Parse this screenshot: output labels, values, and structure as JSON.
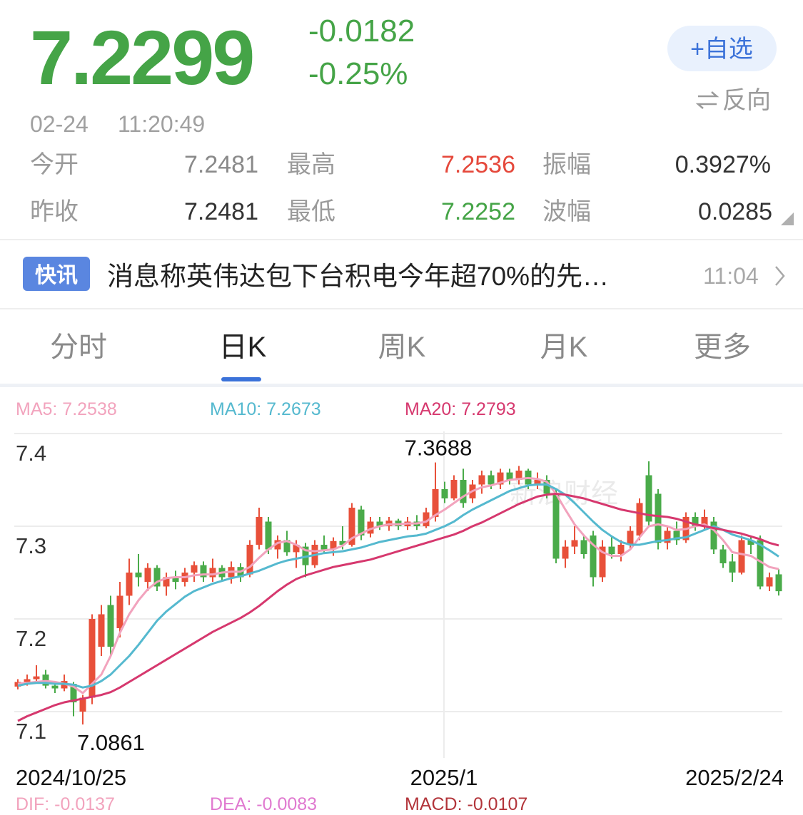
{
  "quote": {
    "price": 7.2299,
    "change": -0.0182,
    "change_pct": "-0.25%",
    "watch_button": "+自选",
    "reverse": "反向",
    "date": "02-24",
    "time": "11:20:49",
    "stats": [
      [
        {
          "label": "今开",
          "value": "7.2481"
        },
        {
          "label": "最高",
          "value": "7.2536"
        },
        {
          "label": "振幅",
          "value": "0.3927%"
        }
      ],
      [
        {
          "label": "昨收",
          "value": "7.2481"
        },
        {
          "label": "最低",
          "value": "7.2252"
        },
        {
          "label": "波幅",
          "value": "0.0285"
        }
      ]
    ]
  },
  "news": {
    "badge": "快讯",
    "headline": "消息称英伟达包下台积电今年超70%的先…",
    "time": "11:04"
  },
  "tabs": [
    "分时",
    "日K",
    "周K",
    "月K",
    "更多"
  ],
  "chart_data": {
    "type": "candlestick",
    "watermark": "新浪财经",
    "up_color": "#e8503a",
    "down_color": "#4aab4a",
    "ylim": [
      7.05,
      7.41
    ],
    "yticks": [
      7.4,
      7.3,
      7.2,
      7.1
    ],
    "grid": true,
    "categories": [
      "2024/10/25",
      null,
      null,
      null,
      null,
      null,
      null,
      null,
      null,
      null,
      null,
      null,
      null,
      null,
      null,
      null,
      null,
      null,
      null,
      null,
      null,
      null,
      null,
      null,
      null,
      null,
      null,
      null,
      null,
      null,
      null,
      null,
      null,
      null,
      null,
      null,
      null,
      null,
      null,
      null,
      null,
      null,
      null,
      null,
      null,
      null,
      "2025/1",
      null,
      null,
      null,
      null,
      null,
      null,
      null,
      null,
      null,
      null,
      null,
      null,
      null,
      null,
      null,
      null,
      null,
      null,
      null,
      null,
      null,
      null,
      null,
      null,
      null,
      null,
      null,
      null,
      null,
      null,
      null,
      null,
      null,
      null,
      null,
      "2025/2/24"
    ],
    "ohlc": [
      [
        7.127,
        7.135,
        7.124,
        7.132
      ],
      [
        7.132,
        7.14,
        7.128,
        7.135
      ],
      [
        7.135,
        7.15,
        7.13,
        7.138
      ],
      [
        7.14,
        7.145,
        7.125,
        7.128
      ],
      [
        7.128,
        7.132,
        7.12,
        7.125
      ],
      [
        7.125,
        7.14,
        7.122,
        7.133
      ],
      [
        7.13,
        7.132,
        7.095,
        7.11
      ],
      [
        7.1,
        7.118,
        7.0861,
        7.115
      ],
      [
        7.115,
        7.205,
        7.108,
        7.2
      ],
      [
        7.17,
        7.215,
        7.16,
        7.205
      ],
      [
        7.215,
        7.225,
        7.16,
        7.17
      ],
      [
        7.19,
        7.24,
        7.18,
        7.225
      ],
      [
        7.225,
        7.265,
        7.215,
        7.25
      ],
      [
        7.25,
        7.27,
        7.235,
        7.245
      ],
      [
        7.24,
        7.26,
        7.23,
        7.255
      ],
      [
        7.255,
        7.258,
        7.23,
        7.235
      ],
      [
        7.235,
        7.25,
        7.225,
        7.245
      ],
      [
        7.245,
        7.252,
        7.232,
        7.24
      ],
      [
        7.24,
        7.255,
        7.235,
        7.25
      ],
      [
        7.25,
        7.262,
        7.24,
        7.258
      ],
      [
        7.258,
        7.262,
        7.24,
        7.245
      ],
      [
        7.245,
        7.265,
        7.24,
        7.255
      ],
      [
        7.255,
        7.258,
        7.24,
        7.245
      ],
      [
        7.245,
        7.262,
        7.238,
        7.256
      ],
      [
        7.256,
        7.26,
        7.24,
        7.245
      ],
      [
        7.248,
        7.285,
        7.245,
        7.28
      ],
      [
        7.28,
        7.32,
        7.275,
        7.31
      ],
      [
        7.305,
        7.31,
        7.27,
        7.275
      ],
      [
        7.275,
        7.29,
        7.265,
        7.285
      ],
      [
        7.285,
        7.295,
        7.268,
        7.272
      ],
      [
        7.272,
        7.285,
        7.255,
        7.28
      ],
      [
        7.278,
        7.282,
        7.245,
        7.258
      ],
      [
        7.258,
        7.285,
        7.255,
        7.28
      ],
      [
        7.28,
        7.29,
        7.27,
        7.275
      ],
      [
        7.275,
        7.288,
        7.268,
        7.284
      ],
      [
        7.284,
        7.3,
        7.275,
        7.28
      ],
      [
        7.28,
        7.325,
        7.278,
        7.32
      ],
      [
        7.318,
        7.322,
        7.285,
        7.29
      ],
      [
        7.292,
        7.31,
        7.288,
        7.305
      ],
      [
        7.305,
        7.31,
        7.296,
        7.3
      ],
      [
        7.3,
        7.31,
        7.295,
        7.306
      ],
      [
        7.306,
        7.308,
        7.296,
        7.3
      ],
      [
        7.3,
        7.31,
        7.296,
        7.305
      ],
      [
        7.305,
        7.312,
        7.296,
        7.3
      ],
      [
        7.3,
        7.32,
        7.298,
        7.315
      ],
      [
        7.31,
        7.3688,
        7.305,
        7.34
      ],
      [
        7.34,
        7.348,
        7.325,
        7.33
      ],
      [
        7.33,
        7.355,
        7.328,
        7.35
      ],
      [
        7.35,
        7.362,
        7.32,
        7.325
      ],
      [
        7.33,
        7.35,
        7.325,
        7.345
      ],
      [
        7.345,
        7.36,
        7.335,
        7.355
      ],
      [
        7.355,
        7.36,
        7.34,
        7.345
      ],
      [
        7.345,
        7.362,
        7.34,
        7.358
      ],
      [
        7.358,
        7.362,
        7.345,
        7.35
      ],
      [
        7.35,
        7.365,
        7.345,
        7.36
      ],
      [
        7.36,
        7.362,
        7.34,
        7.345
      ],
      [
        7.345,
        7.358,
        7.34,
        7.35
      ],
      [
        7.35,
        7.355,
        7.33,
        7.335
      ],
      [
        7.335,
        7.34,
        7.26,
        7.265
      ],
      [
        7.265,
        7.285,
        7.255,
        7.278
      ],
      [
        7.278,
        7.3,
        7.27,
        7.285
      ],
      [
        7.285,
        7.29,
        7.265,
        7.27
      ],
      [
        7.29,
        7.295,
        7.235,
        7.245
      ],
      [
        7.245,
        7.285,
        7.24,
        7.278
      ],
      [
        7.278,
        7.29,
        7.265,
        7.27
      ],
      [
        7.27,
        7.285,
        7.262,
        7.28
      ],
      [
        7.28,
        7.3,
        7.275,
        7.295
      ],
      [
        7.29,
        7.33,
        7.285,
        7.325
      ],
      [
        7.355,
        7.37,
        7.3,
        7.305
      ],
      [
        7.335,
        7.34,
        7.275,
        7.282
      ],
      [
        7.282,
        7.3,
        7.275,
        7.295
      ],
      [
        7.295,
        7.305,
        7.28,
        7.285
      ],
      [
        7.285,
        7.315,
        7.282,
        7.31
      ],
      [
        7.31,
        7.315,
        7.295,
        7.3
      ],
      [
        7.3,
        7.318,
        7.295,
        7.31
      ],
      [
        7.305,
        7.31,
        7.27,
        7.275
      ],
      [
        7.275,
        7.28,
        7.255,
        7.26
      ],
      [
        7.262,
        7.27,
        7.24,
        7.25
      ],
      [
        7.25,
        7.29,
        7.248,
        7.285
      ],
      [
        7.285,
        7.29,
        7.27,
        7.28
      ],
      [
        7.285,
        7.29,
        7.232,
        7.235
      ],
      [
        7.235,
        7.25,
        7.23,
        7.245
      ],
      [
        7.2481,
        7.2536,
        7.2252,
        7.2299
      ]
    ],
    "series": [
      {
        "name": "MA5: 7.2538",
        "color": "#f2a3bd",
        "values": [
          7.13,
          7.131,
          7.132,
          7.133,
          7.132,
          7.13,
          7.127,
          7.12,
          7.13,
          7.14,
          7.16,
          7.185,
          7.205,
          7.22,
          7.232,
          7.24,
          7.244,
          7.245,
          7.245,
          7.247,
          7.248,
          7.248,
          7.25,
          7.251,
          7.251,
          7.256,
          7.266,
          7.275,
          7.282,
          7.284,
          7.28,
          7.274,
          7.273,
          7.274,
          7.275,
          7.279,
          7.287,
          7.292,
          7.297,
          7.3,
          7.302,
          7.302,
          7.303,
          7.303,
          7.305,
          7.312,
          7.318,
          7.325,
          7.332,
          7.338,
          7.342,
          7.344,
          7.347,
          7.35,
          7.351,
          7.352,
          7.351,
          7.348,
          7.335,
          7.318,
          7.302,
          7.29,
          7.28,
          7.272,
          7.268,
          7.268,
          7.275,
          7.288,
          7.3,
          7.302,
          7.3,
          7.296,
          7.297,
          7.3,
          7.302,
          7.296,
          7.285,
          7.272,
          7.27,
          7.268,
          7.262,
          7.256,
          7.2538
        ]
      },
      {
        "name": "MA10: 7.2673",
        "color": "#55b9cf",
        "values": [
          7.128,
          7.13,
          7.131,
          7.131,
          7.13,
          7.13,
          7.129,
          7.126,
          7.128,
          7.133,
          7.14,
          7.15,
          7.16,
          7.172,
          7.185,
          7.198,
          7.208,
          7.216,
          7.224,
          7.23,
          7.234,
          7.238,
          7.241,
          7.244,
          7.246,
          7.249,
          7.252,
          7.256,
          7.26,
          7.263,
          7.265,
          7.267,
          7.269,
          7.271,
          7.272,
          7.273,
          7.275,
          7.277,
          7.28,
          7.283,
          7.285,
          7.287,
          7.289,
          7.29,
          7.292,
          7.296,
          7.3,
          7.305,
          7.312,
          7.318,
          7.323,
          7.328,
          7.333,
          7.338,
          7.341,
          7.344,
          7.345,
          7.345,
          7.34,
          7.334,
          7.325,
          7.315,
          7.305,
          7.296,
          7.289,
          7.283,
          7.28,
          7.28,
          7.282,
          7.284,
          7.285,
          7.287,
          7.288,
          7.292,
          7.296,
          7.3,
          7.296,
          7.291,
          7.288,
          7.285,
          7.28,
          7.274,
          7.2673
        ]
      },
      {
        "name": "MA20: 7.2793",
        "color": "#d6386e",
        "values": [
          7.09,
          7.095,
          7.099,
          7.103,
          7.107,
          7.11,
          7.112,
          7.114,
          7.116,
          7.118,
          7.121,
          7.126,
          7.132,
          7.138,
          7.144,
          7.15,
          7.156,
          7.162,
          7.168,
          7.174,
          7.18,
          7.186,
          7.191,
          7.196,
          7.201,
          7.207,
          7.214,
          7.222,
          7.23,
          7.237,
          7.243,
          7.247,
          7.25,
          7.253,
          7.256,
          7.258,
          7.26,
          7.262,
          7.264,
          7.267,
          7.27,
          7.273,
          7.276,
          7.279,
          7.282,
          7.285,
          7.288,
          7.291,
          7.295,
          7.3,
          7.304,
          7.309,
          7.314,
          7.319,
          7.324,
          7.328,
          7.332,
          7.334,
          7.335,
          7.334,
          7.332,
          7.33,
          7.327,
          7.324,
          7.321,
          7.318,
          7.316,
          7.314,
          7.312,
          7.311,
          7.31,
          7.308,
          7.305,
          7.302,
          7.3,
          7.298,
          7.296,
          7.294,
          7.292,
          7.289,
          7.286,
          7.282,
          7.2793
        ]
      }
    ],
    "max_label": 7.3688,
    "min_label": 7.0861
  },
  "indicators": [
    {
      "text": "DIF: -0.0137",
      "color": "#f2a3bd"
    },
    {
      "text": "DEA: -0.0083",
      "color": "#e07ad0"
    },
    {
      "text": "MACD: -0.0107",
      "color": "#b2343a"
    }
  ]
}
